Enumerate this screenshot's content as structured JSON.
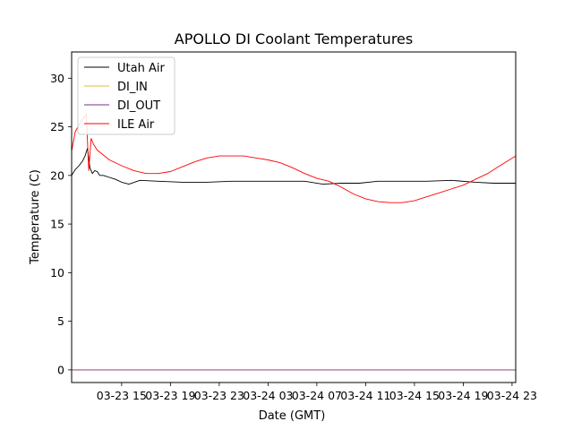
{
  "chart_data": {
    "type": "line",
    "title": "APOLLO DI Coolant Temperatures",
    "xlabel": "Date (GMT)",
    "ylabel": "Temperature (C)",
    "x_unit": "hours since 03-23 00:00 GMT",
    "xlim": [
      10.9,
      47.3
    ],
    "ylim": [
      -1.3,
      32.7
    ],
    "x_ticks": [
      {
        "value": 15,
        "label": "03-23 15"
      },
      {
        "value": 19,
        "label": "03-23 19"
      },
      {
        "value": 23,
        "label": "03-23 23"
      },
      {
        "value": 27,
        "label": "03-24 03"
      },
      {
        "value": 31,
        "label": "03-24 07"
      },
      {
        "value": 35,
        "label": "03-24 11"
      },
      {
        "value": 39,
        "label": "03-24 15"
      },
      {
        "value": 43,
        "label": "03-24 19"
      },
      {
        "value": 47,
        "label": "03-24 23"
      }
    ],
    "y_ticks": [
      0,
      5,
      10,
      15,
      20,
      25,
      30
    ],
    "grid": false,
    "legend_location": "top-left",
    "series": [
      {
        "name": "Utah Air",
        "color": "#000000",
        "x": [
          10.9,
          11.2,
          11.5,
          11.8,
          12.0,
          12.2,
          12.4,
          12.6,
          12.8,
          13.0,
          13.2,
          13.5,
          14.0,
          14.5,
          15.0,
          15.6,
          16.5,
          18.0,
          20.0,
          22.0,
          24.0,
          26.0,
          28.0,
          30.0,
          31.5,
          33.0,
          34.5,
          36.0,
          38.0,
          40.0,
          42.0,
          44.0,
          45.5,
          47.3
        ],
        "y": [
          20.0,
          20.6,
          21.0,
          21.5,
          22.0,
          22.8,
          20.8,
          20.2,
          20.5,
          20.4,
          20.0,
          20.0,
          19.8,
          19.6,
          19.3,
          19.1,
          19.5,
          19.4,
          19.3,
          19.3,
          19.4,
          19.4,
          19.4,
          19.4,
          19.1,
          19.2,
          19.2,
          19.4,
          19.4,
          19.4,
          19.5,
          19.3,
          19.2,
          19.2
        ]
      },
      {
        "name": "DI_IN",
        "color": "#e6b82e",
        "x": [
          10.9,
          47.3
        ],
        "y": [
          0,
          0
        ]
      },
      {
        "name": "DI_OUT",
        "color": "#7b2d8e",
        "x": [
          10.9,
          47.3
        ],
        "y": [
          0,
          0
        ]
      },
      {
        "name": "ILE Air",
        "color": "#ff0000",
        "x": [
          10.9,
          11.2,
          11.5,
          11.8,
          12.1,
          12.3,
          12.5,
          12.7,
          13.0,
          13.5,
          14.0,
          15.0,
          16.0,
          17.0,
          18.0,
          19.0,
          20.0,
          21.0,
          22.0,
          23.0,
          24.0,
          25.0,
          26.0,
          27.0,
          28.0,
          29.0,
          30.0,
          31.0,
          32.0,
          33.0,
          34.0,
          35.0,
          36.0,
          37.0,
          38.0,
          39.0,
          40.0,
          41.0,
          42.0,
          43.0,
          44.0,
          45.0,
          46.0,
          47.3
        ],
        "y": [
          22.5,
          24.5,
          25.2,
          25.8,
          26.3,
          20.5,
          23.8,
          23.2,
          22.6,
          22.1,
          21.6,
          21.0,
          20.5,
          20.2,
          20.2,
          20.4,
          20.9,
          21.4,
          21.8,
          22.0,
          22.0,
          22.0,
          21.8,
          21.6,
          21.3,
          20.8,
          20.2,
          19.7,
          19.4,
          18.8,
          18.1,
          17.6,
          17.3,
          17.2,
          17.2,
          17.4,
          17.8,
          18.2,
          18.6,
          19.0,
          19.6,
          20.2,
          21.0,
          22.0
        ]
      }
    ]
  }
}
